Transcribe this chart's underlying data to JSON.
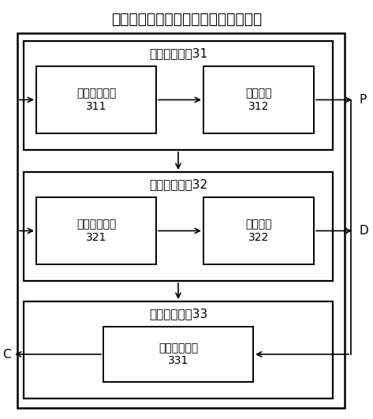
{
  "title": "室内氮氧化物致癌风险的快速检测装置",
  "title_fontsize": 13.5,
  "bg_color": "#ffffff",
  "border_color": "#000000",
  "box_color": "#ffffff",
  "text_color": "#000000",
  "module1_label": "暴露剂量模块31",
  "module1_sub1_label": "数据采集单元\n311",
  "module1_sub2_label": "计量单元\n312",
  "module2_label": "剂量反应模块32",
  "module2_sub1_label": "数据采集单元\n321",
  "module2_sub2_label": "计量单元\n322",
  "module3_label": "致癌风险模块33",
  "module3_sub1_label": "风险评估单元\n331",
  "label_P": "P",
  "label_D": "D",
  "label_C": "C"
}
